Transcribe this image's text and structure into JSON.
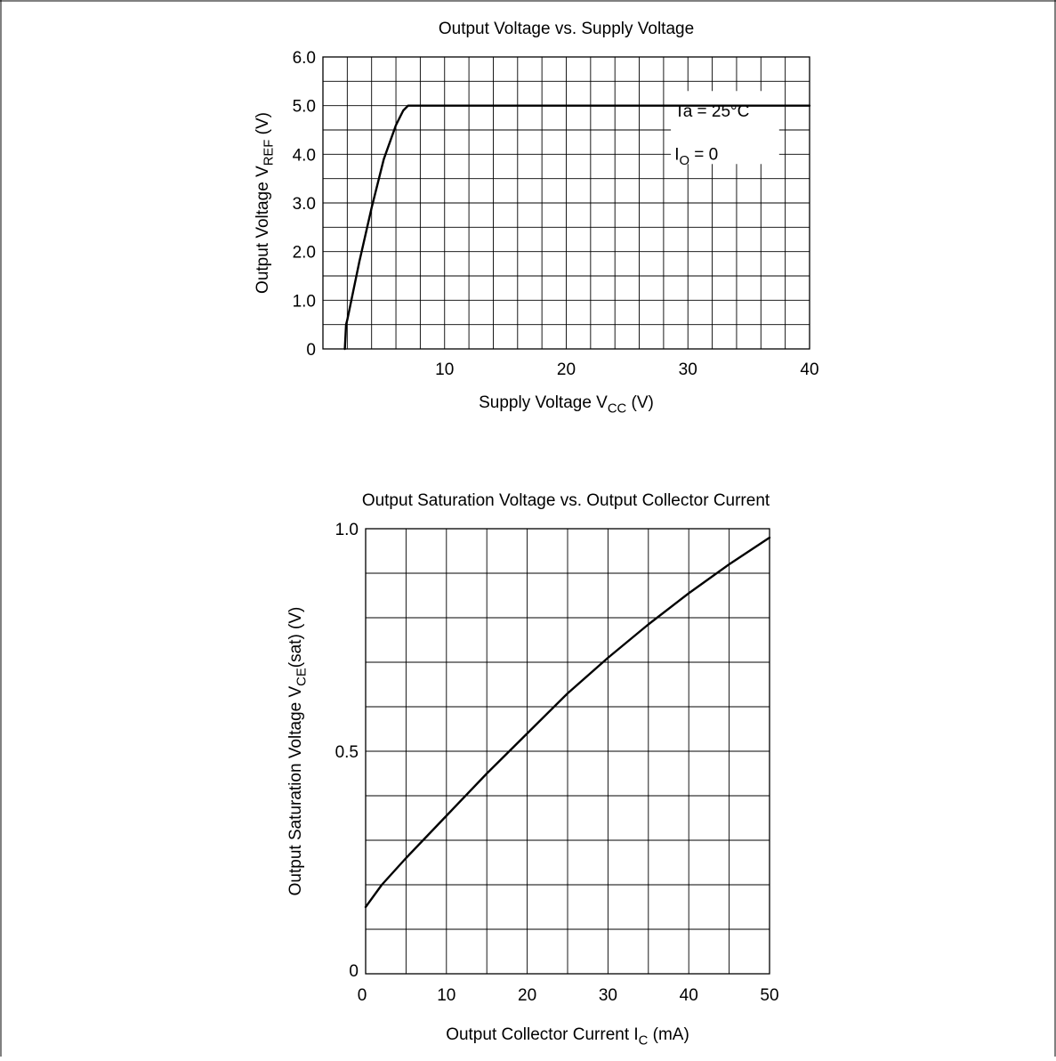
{
  "chart_data": [
    {
      "type": "line",
      "title": "Output Voltage vs. Supply Voltage",
      "xlabel": {
        "main": "Supply Voltage  V",
        "sub": "CC",
        "unit": "(V)"
      },
      "ylabel": {
        "main": "Output Voltage  V",
        "sub": "REF",
        "unit": "(V)"
      },
      "xlim": [
        0,
        40
      ],
      "ylim": [
        0,
        6
      ],
      "x_ticks": [
        {
          "value": 10,
          "label": "10"
        },
        {
          "value": 20,
          "label": "20"
        },
        {
          "value": 30,
          "label": "30"
        },
        {
          "value": 40,
          "label": "40"
        }
      ],
      "y_ticks": [
        {
          "value": 0,
          "label": "0"
        },
        {
          "value": 1,
          "label": "1.0"
        },
        {
          "value": 2,
          "label": "2.0"
        },
        {
          "value": 3,
          "label": "3.0"
        },
        {
          "value": 4,
          "label": "4.0"
        },
        {
          "value": 5,
          "label": "5.0"
        },
        {
          "value": 6,
          "label": "6.0"
        }
      ],
      "grid": true,
      "grid_minor_x": 2,
      "grid_minor_y": 0.5,
      "conditions": {
        "line1": "Ta = 25°C",
        "line2_main": "I",
        "line2_sub": "O",
        "line2_rest": " = 0"
      },
      "series": [
        {
          "x": [
            1.8,
            1.9,
            2.0,
            3.0,
            4.0,
            5.0,
            6.0,
            6.6,
            7.0,
            40.0
          ],
          "y": [
            0,
            0.5,
            0.6,
            1.8,
            2.9,
            3.9,
            4.6,
            4.9,
            5.0,
            5.0
          ]
        }
      ]
    },
    {
      "type": "line",
      "title": "Output Saturation Voltage vs. Output Collector Current",
      "xlabel": {
        "main": "Output Collector Current  I",
        "sub": "C",
        "unit": "(mA)"
      },
      "ylabel": {
        "main": "Output Saturation Voltage  V",
        "sub": "CE",
        "rest": "(sat)",
        "unit": "(V)"
      },
      "xlim": [
        0,
        50
      ],
      "ylim": [
        0,
        1.0
      ],
      "x_ticks": [
        {
          "value": 0,
          "label": "0"
        },
        {
          "value": 10,
          "label": "10"
        },
        {
          "value": 20,
          "label": "20"
        },
        {
          "value": 30,
          "label": "30"
        },
        {
          "value": 40,
          "label": "40"
        },
        {
          "value": 50,
          "label": "50"
        }
      ],
      "y_ticks": [
        {
          "value": 0,
          "label": "0"
        },
        {
          "value": 0.5,
          "label": "0.5"
        },
        {
          "value": 1.0,
          "label": "1.0"
        }
      ],
      "grid": true,
      "grid_minor_x": 5,
      "grid_minor_y": 0.1,
      "series": [
        {
          "x": [
            0,
            2,
            5,
            10,
            15,
            20,
            25,
            30,
            35,
            40,
            45,
            50
          ],
          "y": [
            0.15,
            0.2,
            0.26,
            0.355,
            0.45,
            0.54,
            0.63,
            0.71,
            0.785,
            0.855,
            0.92,
            0.98
          ]
        }
      ]
    }
  ]
}
